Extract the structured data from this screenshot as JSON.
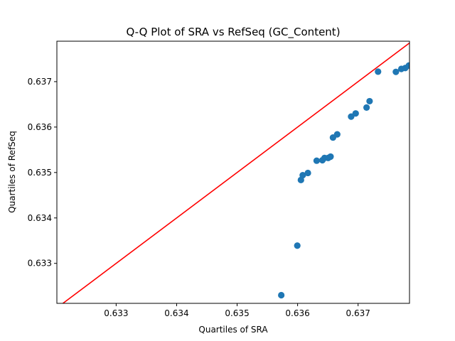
{
  "chart_data": {
    "type": "scatter",
    "title": "Q-Q Plot of SRA vs RefSeq (GC_Content)",
    "xlabel": "Quartiles of SRA",
    "ylabel": "Quartiles of RefSeq",
    "xlim": [
      0.63202,
      0.63785
    ],
    "ylim": [
      0.63212,
      0.63789
    ],
    "xticks": [
      "0.633",
      "0.634",
      "0.635",
      "0.636",
      "0.637"
    ],
    "yticks": [
      "0.633",
      "0.634",
      "0.635",
      "0.636",
      "0.637"
    ],
    "grid": false,
    "legend": "none",
    "series": [
      {
        "marker_color": "#1f77b4",
        "x": [
          0.63573,
          0.635995,
          0.636055,
          0.636085,
          0.63617,
          0.636315,
          0.63641,
          0.636445,
          0.636505,
          0.636545,
          0.636585,
          0.636655,
          0.636885,
          0.63696,
          0.63714,
          0.63719,
          0.63733,
          0.637625,
          0.637715,
          0.63778,
          0.63784
        ],
        "y": [
          0.6323,
          0.63339,
          0.634835,
          0.63494,
          0.63499,
          0.63526,
          0.63527,
          0.63532,
          0.63532,
          0.63535,
          0.63577,
          0.63584,
          0.63623,
          0.6363,
          0.63643,
          0.63657,
          0.63722,
          0.637215,
          0.63728,
          0.6373,
          0.637355
        ]
      }
    ],
    "reference_line": {
      "color": "#ff0000",
      "slope": 1,
      "intercept": 0
    }
  }
}
